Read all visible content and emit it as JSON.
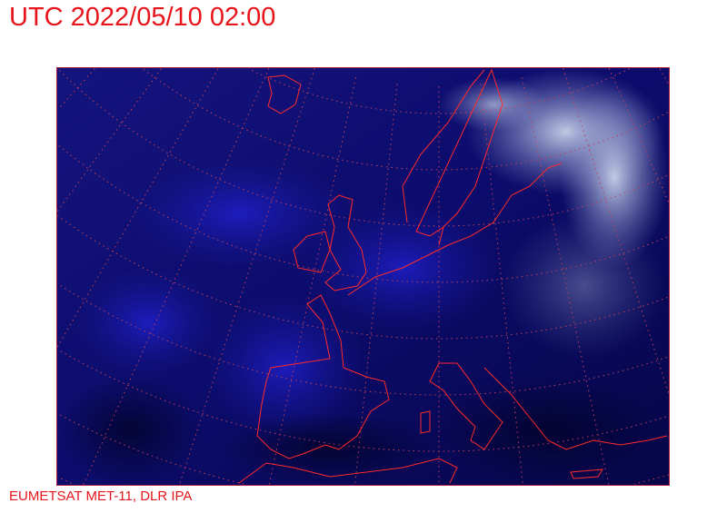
{
  "header": {
    "title": "UTC 2022/05/10 02:00"
  },
  "footer": {
    "credit": "EUMETSAT MET-11, DLR IPA"
  },
  "map": {
    "type": "satellite-image",
    "region": "Europe",
    "overlays": [
      "coastlines",
      "lat-lon-graticule"
    ],
    "colors": {
      "text": "#e8141b",
      "coastline": "#ff2a2a",
      "graticule": "#c0405a",
      "background": "#0a0a60"
    }
  }
}
